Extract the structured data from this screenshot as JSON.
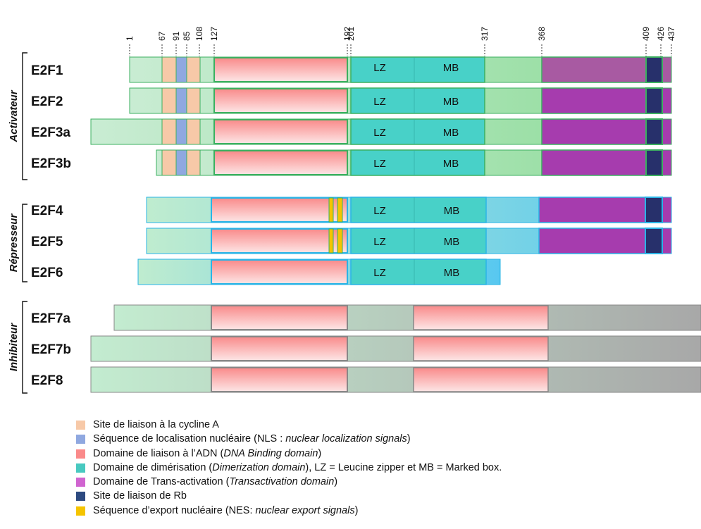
{
  "positions": [
    "1",
    "67",
    "91",
    "85",
    "108",
    "127",
    "192",
    "201",
    "317",
    "368",
    "409",
    "426",
    "437"
  ],
  "groups": [
    {
      "label": "Activateur",
      "proteins": [
        "E2F1",
        "E2F2",
        "E2F3a",
        "E2F3b"
      ]
    },
    {
      "label": "Répresseur",
      "proteins": [
        "E2F4",
        "E2F5",
        "E2F6"
      ]
    },
    {
      "label": "Inhibiteur",
      "proteins": [
        "E2F7a",
        "E2F7b",
        "E2F8"
      ]
    }
  ],
  "domain_labels": {
    "lz": "LZ",
    "mb": "MB"
  },
  "colors": {
    "cyclin_a": "#f7c9a8",
    "nls": "#8fa8e0",
    "dbd": "#f9a0a0",
    "dimerization": "#48d1c8",
    "transactivation": "#a63cae",
    "rb": "#27306b",
    "nes": "#f5c400",
    "activator_tail": "#8fdc9a",
    "repressor_tail": "#58c8f0",
    "inhibitor_tail": "#a8a8a8"
  },
  "legend": [
    {
      "parts": [
        {
          "t": "Site de liaison à la cycline A"
        }
      ],
      "color": "#f7c9a8",
      "icon": "cyclin-a-swatch"
    },
    {
      "parts": [
        {
          "t": "Séquence de localisation nucléaire (NLS : "
        },
        {
          "t": "nuclear localization signals",
          "i": true
        },
        {
          "t": ")"
        }
      ],
      "color": "#8fa8e0",
      "icon": "nls-swatch"
    },
    {
      "parts": [
        {
          "t": "Domaine de liaison à l’ADN ("
        },
        {
          "t": "DNA Binding domain",
          "i": true
        },
        {
          "t": ")"
        }
      ],
      "color": "#fa8a8a",
      "icon": "dbd-swatch"
    },
    {
      "parts": [
        {
          "t": "Domaine de dimérisation ("
        },
        {
          "t": "Dimerization domain",
          "i": true
        },
        {
          "t": "), LZ = Leucine zipper et MB = Marked box."
        }
      ],
      "color": "#48c9c0",
      "icon": "dimerization-swatch"
    },
    {
      "parts": [
        {
          "t": "Domaine de Trans-activation ("
        },
        {
          "t": "Transactivation domain",
          "i": true
        },
        {
          "t": ")"
        }
      ],
      "color": "#d064d0",
      "icon": "transactivation-swatch"
    },
    {
      "parts": [
        {
          "t": "Site de liaison de Rb"
        }
      ],
      "color": "#2d4a80",
      "icon": "rb-swatch"
    },
    {
      "parts": [
        {
          "t": "Séquence d’export nucléaire (NES: "
        },
        {
          "t": "nuclear export signals",
          "i": true
        },
        {
          "t": ")"
        }
      ],
      "color": "#f5c400",
      "icon": "nes-swatch"
    }
  ]
}
